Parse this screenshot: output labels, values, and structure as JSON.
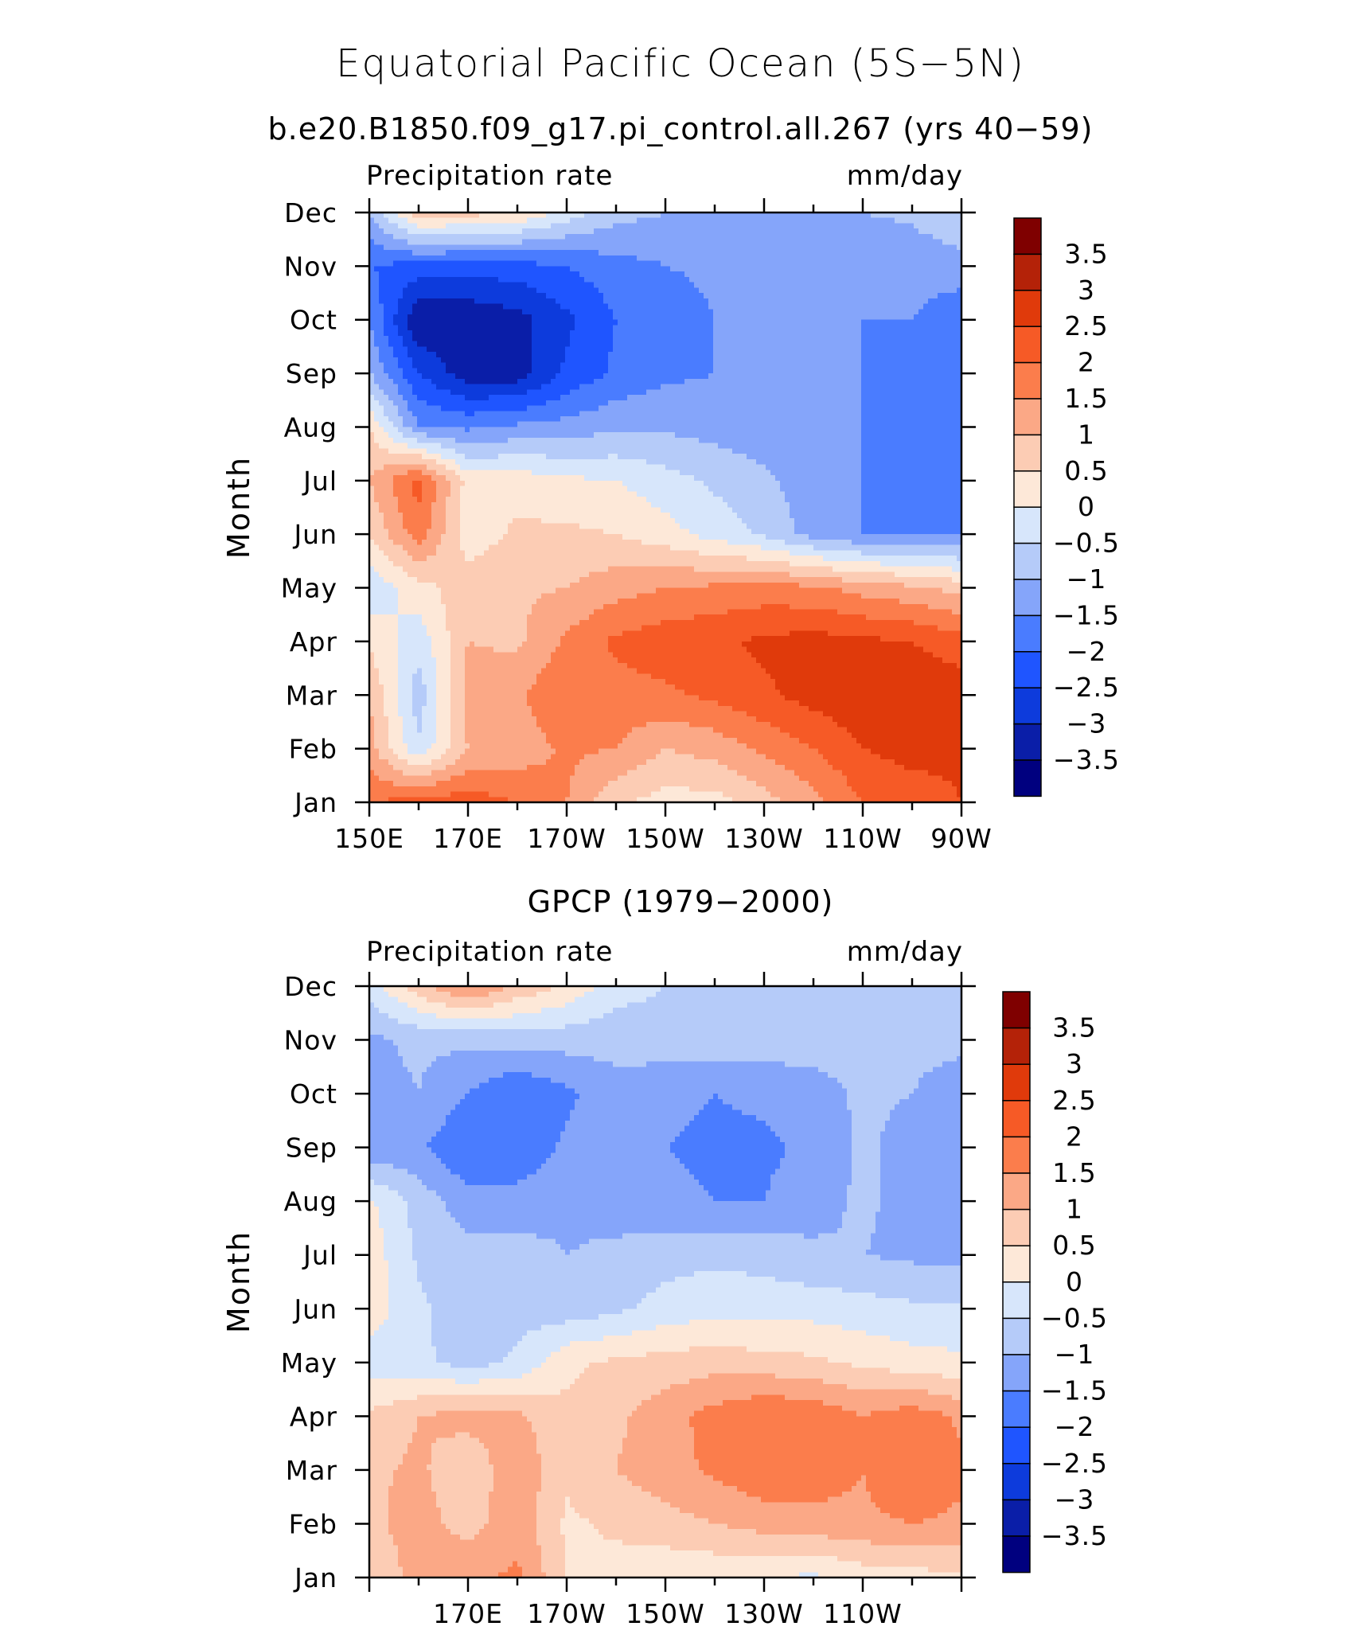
{
  "title": "Equatorial Pacific Ocean (5S−5N)",
  "chart_data": [
    {
      "type": "heatmap",
      "subtitle": "b.e20.B1850.f09_g17.pi_control.all.267 (yrs 40−59)",
      "left_label": "Precipitation rate",
      "right_label": "mm/day",
      "ylabel": "Month",
      "x_ticks": [
        150,
        170,
        190,
        210,
        230,
        250,
        270
      ],
      "x_tick_labels": [
        "150E",
        "170E",
        "170W",
        "150W",
        "130W",
        "110W",
        "90W"
      ],
      "xlim": [
        150,
        270
      ],
      "months": [
        "Jan",
        "Feb",
        "Mar",
        "Apr",
        "May",
        "Jun",
        "Jul",
        "Aug",
        "Sep",
        "Oct",
        "Nov",
        "Dec"
      ],
      "lons": [
        150,
        160,
        170,
        180,
        190,
        200,
        210,
        220,
        230,
        240,
        250,
        260,
        270
      ],
      "values": [
        [
          2.0,
          2.2,
          2.3,
          2.0,
          1.5,
          0.6,
          0.3,
          0.3,
          0.8,
          1.3,
          2.0,
          2.2,
          2.5
        ],
        [
          1.2,
          -0.4,
          1.0,
          1.2,
          1.6,
          1.5,
          1.0,
          1.2,
          1.6,
          2.0,
          2.5,
          2.7,
          2.6
        ],
        [
          1.0,
          -0.8,
          1.2,
          1.4,
          2.0,
          1.8,
          1.9,
          2.1,
          2.4,
          2.7,
          2.9,
          2.9,
          2.8
        ],
        [
          0.4,
          -0.3,
          1.0,
          0.9,
          1.6,
          2.1,
          2.3,
          2.4,
          2.6,
          2.7,
          2.6,
          2.5,
          2.2
        ],
        [
          -0.4,
          0.3,
          0.8,
          0.9,
          1.0,
          1.3,
          1.5,
          1.6,
          1.7,
          1.6,
          1.3,
          1.1,
          0.8
        ],
        [
          0.5,
          1.8,
          0.2,
          0.6,
          0.6,
          0.5,
          0.2,
          -0.2,
          -0.6,
          -1.2,
          -1.5,
          -1.5,
          -1.6
        ],
        [
          1.0,
          2.2,
          0.3,
          0.3,
          0.1,
          0.0,
          -0.3,
          -0.6,
          -0.9,
          -1.3,
          -1.5,
          -1.6,
          -1.9
        ],
        [
          0.5,
          -1.5,
          -1.6,
          -1.4,
          -1.3,
          -1.1,
          -1.1,
          -1.2,
          -1.3,
          -1.4,
          -1.5,
          -1.6,
          -1.9
        ],
        [
          -1.0,
          -2.5,
          -3.3,
          -3.3,
          -2.4,
          -1.9,
          -1.6,
          -1.5,
          -1.5,
          -1.5,
          -1.5,
          -1.6,
          -2.0
        ],
        [
          -1.5,
          -3.5,
          -3.4,
          -3.2,
          -2.6,
          -2.0,
          -1.8,
          -1.5,
          -1.5,
          -1.5,
          -1.5,
          -1.5,
          -1.9
        ],
        [
          -2.0,
          -2.2,
          -2.3,
          -2.2,
          -2.0,
          -1.7,
          -1.5,
          -1.4,
          -1.4,
          -1.4,
          -1.4,
          -1.3,
          -1.2
        ],
        [
          -1.0,
          0.8,
          0.7,
          0.5,
          -0.2,
          -0.8,
          -1.0,
          -1.0,
          -1.0,
          -1.0,
          -1.0,
          -0.9,
          -0.6
        ]
      ],
      "levels": [
        -3.5,
        -3,
        -2.5,
        -2,
        -1.5,
        -1,
        -0.5,
        0,
        0.5,
        1,
        1.5,
        2,
        2.5,
        3,
        3.5
      ],
      "colorbar_labels": [
        "3.5",
        "3",
        "2.5",
        "2",
        "1.5",
        "1",
        "0.5",
        "0",
        "−0.5",
        "−1",
        "−1.5",
        "−2",
        "−2.5",
        "−3",
        "−3.5"
      ],
      "colors": [
        "#00007f",
        "#0a1ea8",
        "#0d3bdc",
        "#1f55ff",
        "#4a7cff",
        "#85a5fa",
        "#b5cbf9",
        "#d7e6fb",
        "#fde8d8",
        "#fcccb4",
        "#fba886",
        "#fb7d4c",
        "#f65a26",
        "#e03a0b",
        "#b42208",
        "#7f0000"
      ]
    },
    {
      "type": "heatmap",
      "subtitle": "GPCP (1979−2000)",
      "left_label": "Precipitation rate",
      "right_label": "mm/day",
      "ylabel": "Month",
      "x_ticks": [
        170,
        190,
        210,
        230,
        250
      ],
      "x_tick_labels": [
        "170E",
        "170W",
        "150W",
        "130W",
        "110W"
      ],
      "xlim": [
        150,
        270
      ],
      "months": [
        "Jan",
        "Feb",
        "Mar",
        "Apr",
        "May",
        "Jun",
        "Jul",
        "Aug",
        "Sep",
        "Oct",
        "Nov",
        "Dec"
      ],
      "lons": [
        150,
        160,
        170,
        180,
        190,
        200,
        210,
        220,
        230,
        240,
        250,
        260,
        270
      ],
      "values": [
        [
          0.6,
          1.2,
          1.4,
          1.6,
          0.5,
          0.3,
          0.1,
          0.1,
          0.0,
          -0.1,
          0.2,
          0.3,
          0.4
        ],
        [
          0.9,
          1.2,
          0.8,
          1.3,
          0.4,
          0.6,
          0.8,
          1.0,
          1.2,
          1.3,
          1.4,
          1.5,
          1.4
        ],
        [
          0.9,
          1.1,
          0.6,
          1.4,
          0.6,
          1.0,
          1.3,
          1.6,
          1.9,
          1.8,
          1.5,
          2.0,
          1.6
        ],
        [
          0.6,
          1.0,
          1.2,
          1.1,
          0.6,
          0.9,
          1.3,
          1.7,
          2.0,
          1.9,
          1.5,
          1.8,
          1.4
        ],
        [
          -0.3,
          -0.4,
          -0.7,
          -0.4,
          0.4,
          0.6,
          0.7,
          0.8,
          0.7,
          0.6,
          0.4,
          0.2,
          0.1
        ],
        [
          0.3,
          -0.4,
          -0.8,
          -0.7,
          -0.8,
          -0.6,
          -0.3,
          -0.2,
          -0.2,
          -0.2,
          -0.3,
          -0.4,
          -0.4
        ],
        [
          0.3,
          -0.6,
          -0.8,
          -0.8,
          -1.0,
          -0.9,
          -0.7,
          -0.6,
          -0.7,
          -0.9,
          -1.0,
          -1.1,
          -1.2
        ],
        [
          0.1,
          -0.7,
          -1.3,
          -1.3,
          -1.1,
          -1.2,
          -1.4,
          -1.5,
          -1.5,
          -1.2,
          -0.9,
          -1.2,
          -1.3
        ],
        [
          -1.4,
          -1.4,
          -2.0,
          -1.9,
          -1.4,
          -1.2,
          -1.5,
          -1.6,
          -1.6,
          -1.4,
          -0.9,
          -1.2,
          -1.3
        ],
        [
          -1.2,
          -1.0,
          -1.5,
          -2.0,
          -1.6,
          -1.2,
          -1.4,
          -1.5,
          -1.4,
          -1.2,
          -0.9,
          -1.0,
          -1.2
        ],
        [
          -1.1,
          -0.9,
          -0.9,
          -0.8,
          -0.8,
          -0.8,
          -0.7,
          -0.7,
          -0.7,
          -0.8,
          -0.8,
          -0.9,
          -0.9
        ],
        [
          -0.3,
          0.8,
          1.6,
          0.9,
          0.4,
          -0.3,
          -0.5,
          -0.5,
          -0.5,
          -0.5,
          -0.5,
          -0.5,
          -0.5
        ]
      ],
      "levels": [
        -3.5,
        -3,
        -2.5,
        -2,
        -1.5,
        -1,
        -0.5,
        0,
        0.5,
        1,
        1.5,
        2,
        2.5,
        3,
        3.5
      ],
      "colorbar_labels": [
        "3.5",
        "3",
        "2.5",
        "2",
        "1.5",
        "1",
        "0.5",
        "0",
        "−0.5",
        "−1",
        "−1.5",
        "−2",
        "−2.5",
        "−3",
        "−3.5"
      ],
      "colors": [
        "#00007f",
        "#0a1ea8",
        "#0d3bdc",
        "#1f55ff",
        "#4a7cff",
        "#85a5fa",
        "#b5cbf9",
        "#d7e6fb",
        "#fde8d8",
        "#fcccb4",
        "#fba886",
        "#fb7d4c",
        "#f65a26",
        "#e03a0b",
        "#b42208",
        "#7f0000"
      ]
    }
  ]
}
